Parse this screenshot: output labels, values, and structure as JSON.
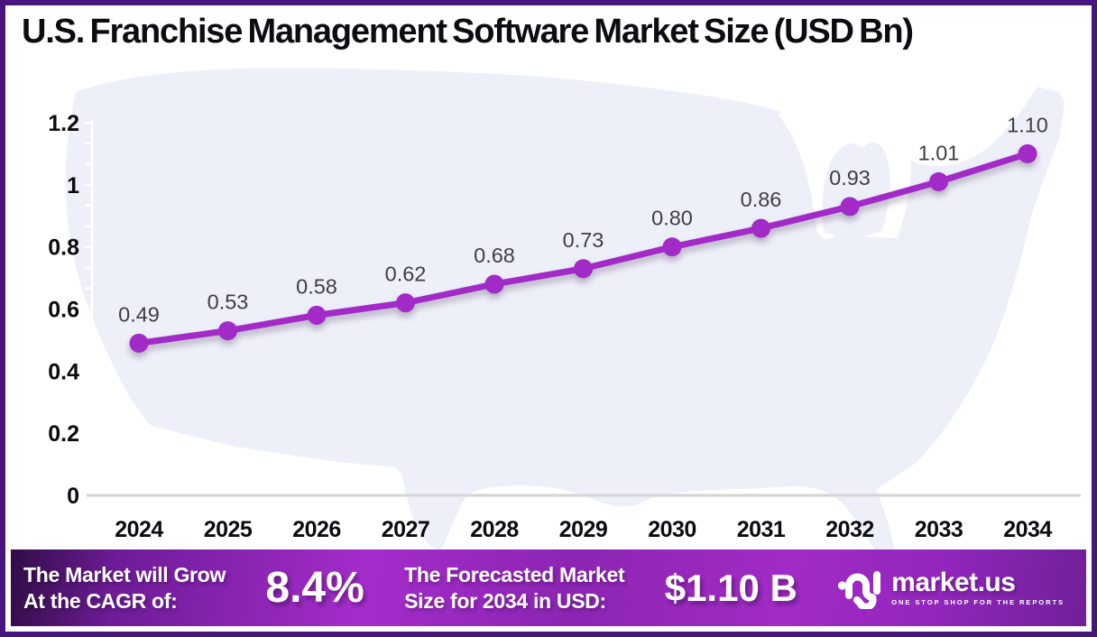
{
  "title": "U.S. Franchise Management Software Market Size (USD Bn)",
  "chart_data": {
    "type": "line",
    "title": "U.S. Franchise Management Software Market Size (USD Bn)",
    "categories": [
      "2024",
      "2025",
      "2026",
      "2027",
      "2028",
      "2029",
      "2030",
      "2031",
      "2032",
      "2033",
      "2034"
    ],
    "values": [
      0.49,
      0.53,
      0.58,
      0.62,
      0.68,
      0.73,
      0.8,
      0.86,
      0.93,
      1.01,
      1.1
    ],
    "point_labels": [
      "0.49",
      "0.53",
      "0.58",
      "0.62",
      "0.68",
      "0.73",
      "0.80",
      "0.86",
      "0.93",
      "1.01",
      "1.10"
    ],
    "xlabel": "",
    "ylabel": "",
    "ylim": [
      0,
      1.2
    ],
    "y_ticks": [
      0,
      0.2,
      0.4,
      0.6,
      0.8,
      1,
      1.2
    ],
    "y_tick_labels": [
      "0",
      "0.2",
      "0.4",
      "0.6",
      "0.8",
      "1",
      "1.2"
    ],
    "grid": false,
    "legend": false,
    "line_color": "#A22AC6",
    "marker_color": "#A22AC6",
    "data_label_color": "#3E3E46",
    "axis_label_color": "#0B0B10"
  },
  "banner": {
    "cagr_line1": "The Market will Grow",
    "cagr_line2": "At the CAGR of:",
    "cagr_value": "8.4%",
    "forecast_line1": "The Forecasted Market",
    "forecast_line2": "Size for 2034 in USD:",
    "forecast_value": "$1.10 B",
    "logo_text": "market.us",
    "logo_tagline": "ONE STOP SHOP FOR THE REPORTS"
  },
  "colors": {
    "frame_border": "#48157E",
    "map_fill": "#EEF0F9",
    "axis_line": "#FFFFFF",
    "baseline": "#D5D5D8",
    "banner_bright": "#A42CCB",
    "banner_dark": "#300D45"
  }
}
